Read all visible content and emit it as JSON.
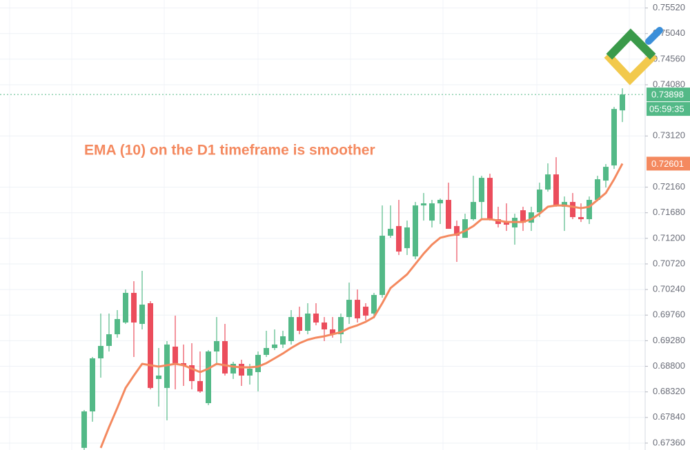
{
  "chart_data": {
    "type": "candlestick",
    "annotation": "EMA (10) on the D1 timeframe is smoother",
    "open": [
      0.6727,
      0.67954,
      0.68949,
      0.69182,
      0.69401,
      0.69621,
      0.70177,
      0.69595,
      0.69983,
      0.68562,
      0.68394,
      0.69169,
      0.68859,
      0.6882,
      0.68523,
      0.68109,
      0.69078,
      0.69272,
      0.68665,
      0.68846,
      0.68626,
      0.68691,
      0.69014,
      0.69143,
      0.69208,
      0.69272,
      0.69724,
      0.69466,
      0.69789,
      0.69621,
      0.69492,
      0.69401,
      0.69724,
      0.70047,
      0.69918,
      0.69789,
      0.70138,
      0.71249,
      0.7143,
      0.71016,
      0.70861,
      0.71817,
      0.71533,
      0.71856,
      0.71921,
      0.7143,
      0.7121,
      0.71559,
      0.71882,
      0.72334,
      0.71559,
      0.71507,
      0.71404,
      0.71727,
      0.71494,
      0.71688,
      0.72115,
      0.72399,
      0.71792,
      0.71882,
      0.71598,
      0.71559,
      0.71921,
      0.72283,
      0.72567,
      0.736
    ],
    "high": [
      0.6798,
      0.68975,
      0.69789,
      0.69789,
      0.69854,
      0.70241,
      0.70396,
      0.7059,
      0.70022,
      0.69143,
      0.69272,
      0.6975,
      0.69208,
      0.69233,
      0.69078,
      0.69104,
      0.69724,
      0.69595,
      0.68885,
      0.68923,
      0.68846,
      0.69078,
      0.69466,
      0.69492,
      0.69466,
      0.69854,
      0.69918,
      0.69983,
      0.69983,
      0.69724,
      0.69724,
      0.69789,
      0.7037,
      0.70241,
      0.69983,
      0.70177,
      0.71817,
      0.71817,
      0.71921,
      0.71533,
      0.71882,
      0.7205,
      0.71921,
      0.71947,
      0.72244,
      0.71533,
      0.71662,
      0.72373,
      0.72373,
      0.72412,
      0.71792,
      0.71856,
      0.71662,
      0.71792,
      0.71792,
      0.72244,
      0.72606,
      0.72722,
      0.71985,
      0.7205,
      0.71856,
      0.71985,
      0.72373,
      0.72593,
      0.73665,
      0.74014
    ],
    "low": [
      0.67231,
      0.67761,
      0.68587,
      0.69078,
      0.69337,
      0.69595,
      0.68975,
      0.69492,
      0.68368,
      0.68045,
      0.67786,
      0.68368,
      0.68432,
      0.68368,
      0.68303,
      0.68071,
      0.6882,
      0.68626,
      0.68562,
      0.68432,
      0.68458,
      0.68329,
      0.68975,
      0.69104,
      0.69143,
      0.69208,
      0.69401,
      0.69401,
      0.69569,
      0.69272,
      0.69337,
      0.69233,
      0.69595,
      0.69621,
      0.6966,
      0.69699,
      0.70086,
      0.7121,
      0.70887,
      0.70887,
      0.7081,
      0.71533,
      0.71404,
      0.71469,
      0.71404,
      0.70758,
      0.7121,
      0.71533,
      0.71559,
      0.71533,
      0.71404,
      0.71339,
      0.71081,
      0.71339,
      0.71339,
      0.71598,
      0.72076,
      0.71792,
      0.71339,
      0.71559,
      0.71507,
      0.71469,
      0.71895,
      0.72153,
      0.72502,
      0.73381
    ],
    "close": [
      0.67954,
      0.68949,
      0.69182,
      0.69401,
      0.69686,
      0.70177,
      0.69621,
      0.69957,
      0.68394,
      0.68626,
      0.69208,
      0.68859,
      0.6882,
      0.68523,
      0.68329,
      0.69078,
      0.69272,
      0.68665,
      0.68846,
      0.68626,
      0.68755,
      0.69014,
      0.69143,
      0.69208,
      0.69363,
      0.69724,
      0.69466,
      0.69789,
      0.69621,
      0.69492,
      0.69401,
      0.69724,
      0.70047,
      0.69699,
      0.6975,
      0.70138,
      0.71249,
      0.71378,
      0.70952,
      0.71404,
      0.71817,
      0.71856,
      0.71856,
      0.71921,
      0.71378,
      0.71249,
      0.71559,
      0.71882,
      0.72334,
      0.71559,
      0.71469,
      0.71456,
      0.71585,
      0.71494,
      0.71688,
      0.72115,
      0.72399,
      0.71817,
      0.71882,
      0.71598,
      0.71559,
      0.71921,
      0.72308,
      0.72541,
      0.73626,
      0.73898
    ],
    "up_color": "#53b987",
    "down_color": "#eb4d5c",
    "overlay": {
      "color": "#f4895f",
      "values": [
        null,
        null,
        0.6727,
        0.67657,
        0.68019,
        0.68394,
        0.68626,
        0.68846,
        0.6882,
        0.68794,
        0.6882,
        0.68846,
        0.6882,
        0.68755,
        0.68691,
        0.68755,
        0.68846,
        0.6882,
        0.68794,
        0.68781,
        0.68781,
        0.68794,
        0.68859,
        0.68949,
        0.6904,
        0.69143,
        0.69233,
        0.69298,
        0.69337,
        0.69363,
        0.69401,
        0.6944,
        0.69518,
        0.69569,
        0.69634,
        0.69724,
        0.69983,
        0.70267,
        0.70396,
        0.70525,
        0.70719,
        0.70913,
        0.71081,
        0.7121,
        0.71249,
        0.71275,
        0.71339,
        0.7143,
        0.71559,
        0.71559,
        0.71533,
        0.71507,
        0.71507,
        0.71507,
        0.71559,
        0.71662,
        0.71792,
        0.71817,
        0.71817,
        0.71792,
        0.71766,
        0.71792,
        0.71921,
        0.7205,
        0.72308,
        0.72601
      ]
    },
    "last_price": 0.73898,
    "countdown": "05:59:35",
    "ylim": [
      0.6723,
      0.7567
    ],
    "yticks": [
      {
        "value": 0.6736,
        "label": "0.67360"
      },
      {
        "value": 0.6784,
        "label": "0.67840"
      },
      {
        "value": 0.6832,
        "label": "0.68320"
      },
      {
        "value": 0.688,
        "label": "0.68800"
      },
      {
        "value": 0.6928,
        "label": "0.69280"
      },
      {
        "value": 0.6976,
        "label": "0.69760"
      },
      {
        "value": 0.7024,
        "label": "0.70240"
      },
      {
        "value": 0.7072,
        "label": "0.70720"
      },
      {
        "value": 0.712,
        "label": "0.71200"
      },
      {
        "value": 0.7168,
        "label": "0.71680"
      },
      {
        "value": 0.7216,
        "label": "0.72160"
      },
      {
        "value": 0.7312,
        "label": "0.73120"
      },
      {
        "value": 0.7408,
        "label": "0.74080"
      },
      {
        "value": 0.7456,
        "label": "0.74560"
      },
      {
        "value": 0.7504,
        "label": "0.75040"
      },
      {
        "value": 0.7552,
        "label": "0.75520"
      }
    ],
    "grid": true
  }
}
